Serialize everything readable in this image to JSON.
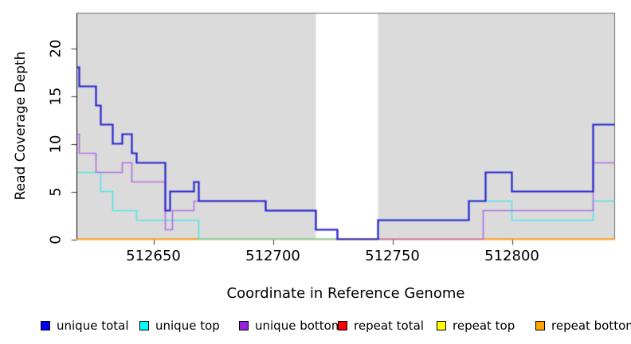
{
  "chart_data": {
    "type": "line",
    "subtype": "step-coverage-plot",
    "title": "",
    "xlabel": "Coordinate in Reference Genome",
    "ylabel": "Read Coverage Depth",
    "xlim": [
      512618,
      512843
    ],
    "ylim": [
      0,
      23.7
    ],
    "x_ticks": [
      "512650",
      "512700",
      "512750",
      "512800"
    ],
    "x_tick_values": [
      512650,
      512700,
      512750,
      512800
    ],
    "y_ticks": [
      "0",
      "5",
      "10",
      "15",
      "20"
    ],
    "y_tick_values": [
      0,
      5,
      10,
      15,
      20
    ],
    "grid": "off",
    "panel_bg": "#DBDBDB",
    "highlight_band": {
      "x0": 512718,
      "x1": 512744,
      "color": "#FFFFFF"
    },
    "series": [
      {
        "name": "unique total",
        "color": "#2525CF",
        "width": 2.2,
        "points": [
          [
            512618,
            18
          ],
          [
            512619,
            16
          ],
          [
            512626,
            14
          ],
          [
            512628,
            12
          ],
          [
            512633,
            10
          ],
          [
            512637,
            11
          ],
          [
            512641,
            9
          ],
          [
            512643,
            8
          ],
          [
            512655,
            3
          ],
          [
            512657,
            5
          ],
          [
            512667,
            6
          ],
          [
            512669,
            4
          ],
          [
            512697,
            3
          ],
          [
            512718,
            1
          ],
          [
            512727,
            0
          ],
          [
            512744,
            2
          ],
          [
            512782,
            4
          ],
          [
            512789,
            7
          ],
          [
            512800,
            5
          ],
          [
            512834,
            12
          ]
        ]
      },
      {
        "name": "unique top",
        "color": "#55E5E5",
        "width": 1.6,
        "points": [
          [
            512618,
            7
          ],
          [
            512628,
            5
          ],
          [
            512633,
            3
          ],
          [
            512643,
            2
          ],
          [
            512669,
            0
          ],
          [
            512744,
            2
          ],
          [
            512782,
            4
          ],
          [
            512800,
            2
          ],
          [
            512834,
            4
          ]
        ]
      },
      {
        "name": "unique bottom",
        "color": "#B272E2",
        "width": 1.7,
        "points": [
          [
            512618,
            11
          ],
          [
            512619,
            9
          ],
          [
            512626,
            7
          ],
          [
            512637,
            8
          ],
          [
            512641,
            6
          ],
          [
            512655,
            1
          ],
          [
            512658,
            3
          ],
          [
            512667,
            4
          ],
          [
            512697,
            3
          ],
          [
            512718,
            1
          ],
          [
            512727,
            0
          ],
          [
            512788,
            3
          ],
          [
            512834,
            8
          ]
        ]
      },
      {
        "name": "repeat total",
        "color": "#E00000",
        "width": 1.4,
        "points": [
          [
            512618,
            0
          ]
        ]
      },
      {
        "name": "repeat top",
        "color": "#FFFF00",
        "width": 1.4,
        "points": [
          [
            512618,
            0
          ]
        ]
      },
      {
        "name": "repeat bottom",
        "color": "#FFA428",
        "width": 1.8,
        "points": [
          [
            512618,
            0
          ]
        ]
      }
    ],
    "draw_order": [
      3,
      4,
      5,
      1,
      2,
      0
    ],
    "legend_position": "bottom",
    "legend": [
      {
        "label": "unique total",
        "color": "#0000EE"
      },
      {
        "label": "unique top",
        "color": "#00FFFF"
      },
      {
        "label": "unique bottom",
        "color": "#9B20DC"
      },
      {
        "label": "repeat total",
        "color": "#FF0000"
      },
      {
        "label": "repeat top",
        "color": "#FFFF00"
      },
      {
        "label": "repeat bottom",
        "color": "#FFA500"
      }
    ]
  }
}
